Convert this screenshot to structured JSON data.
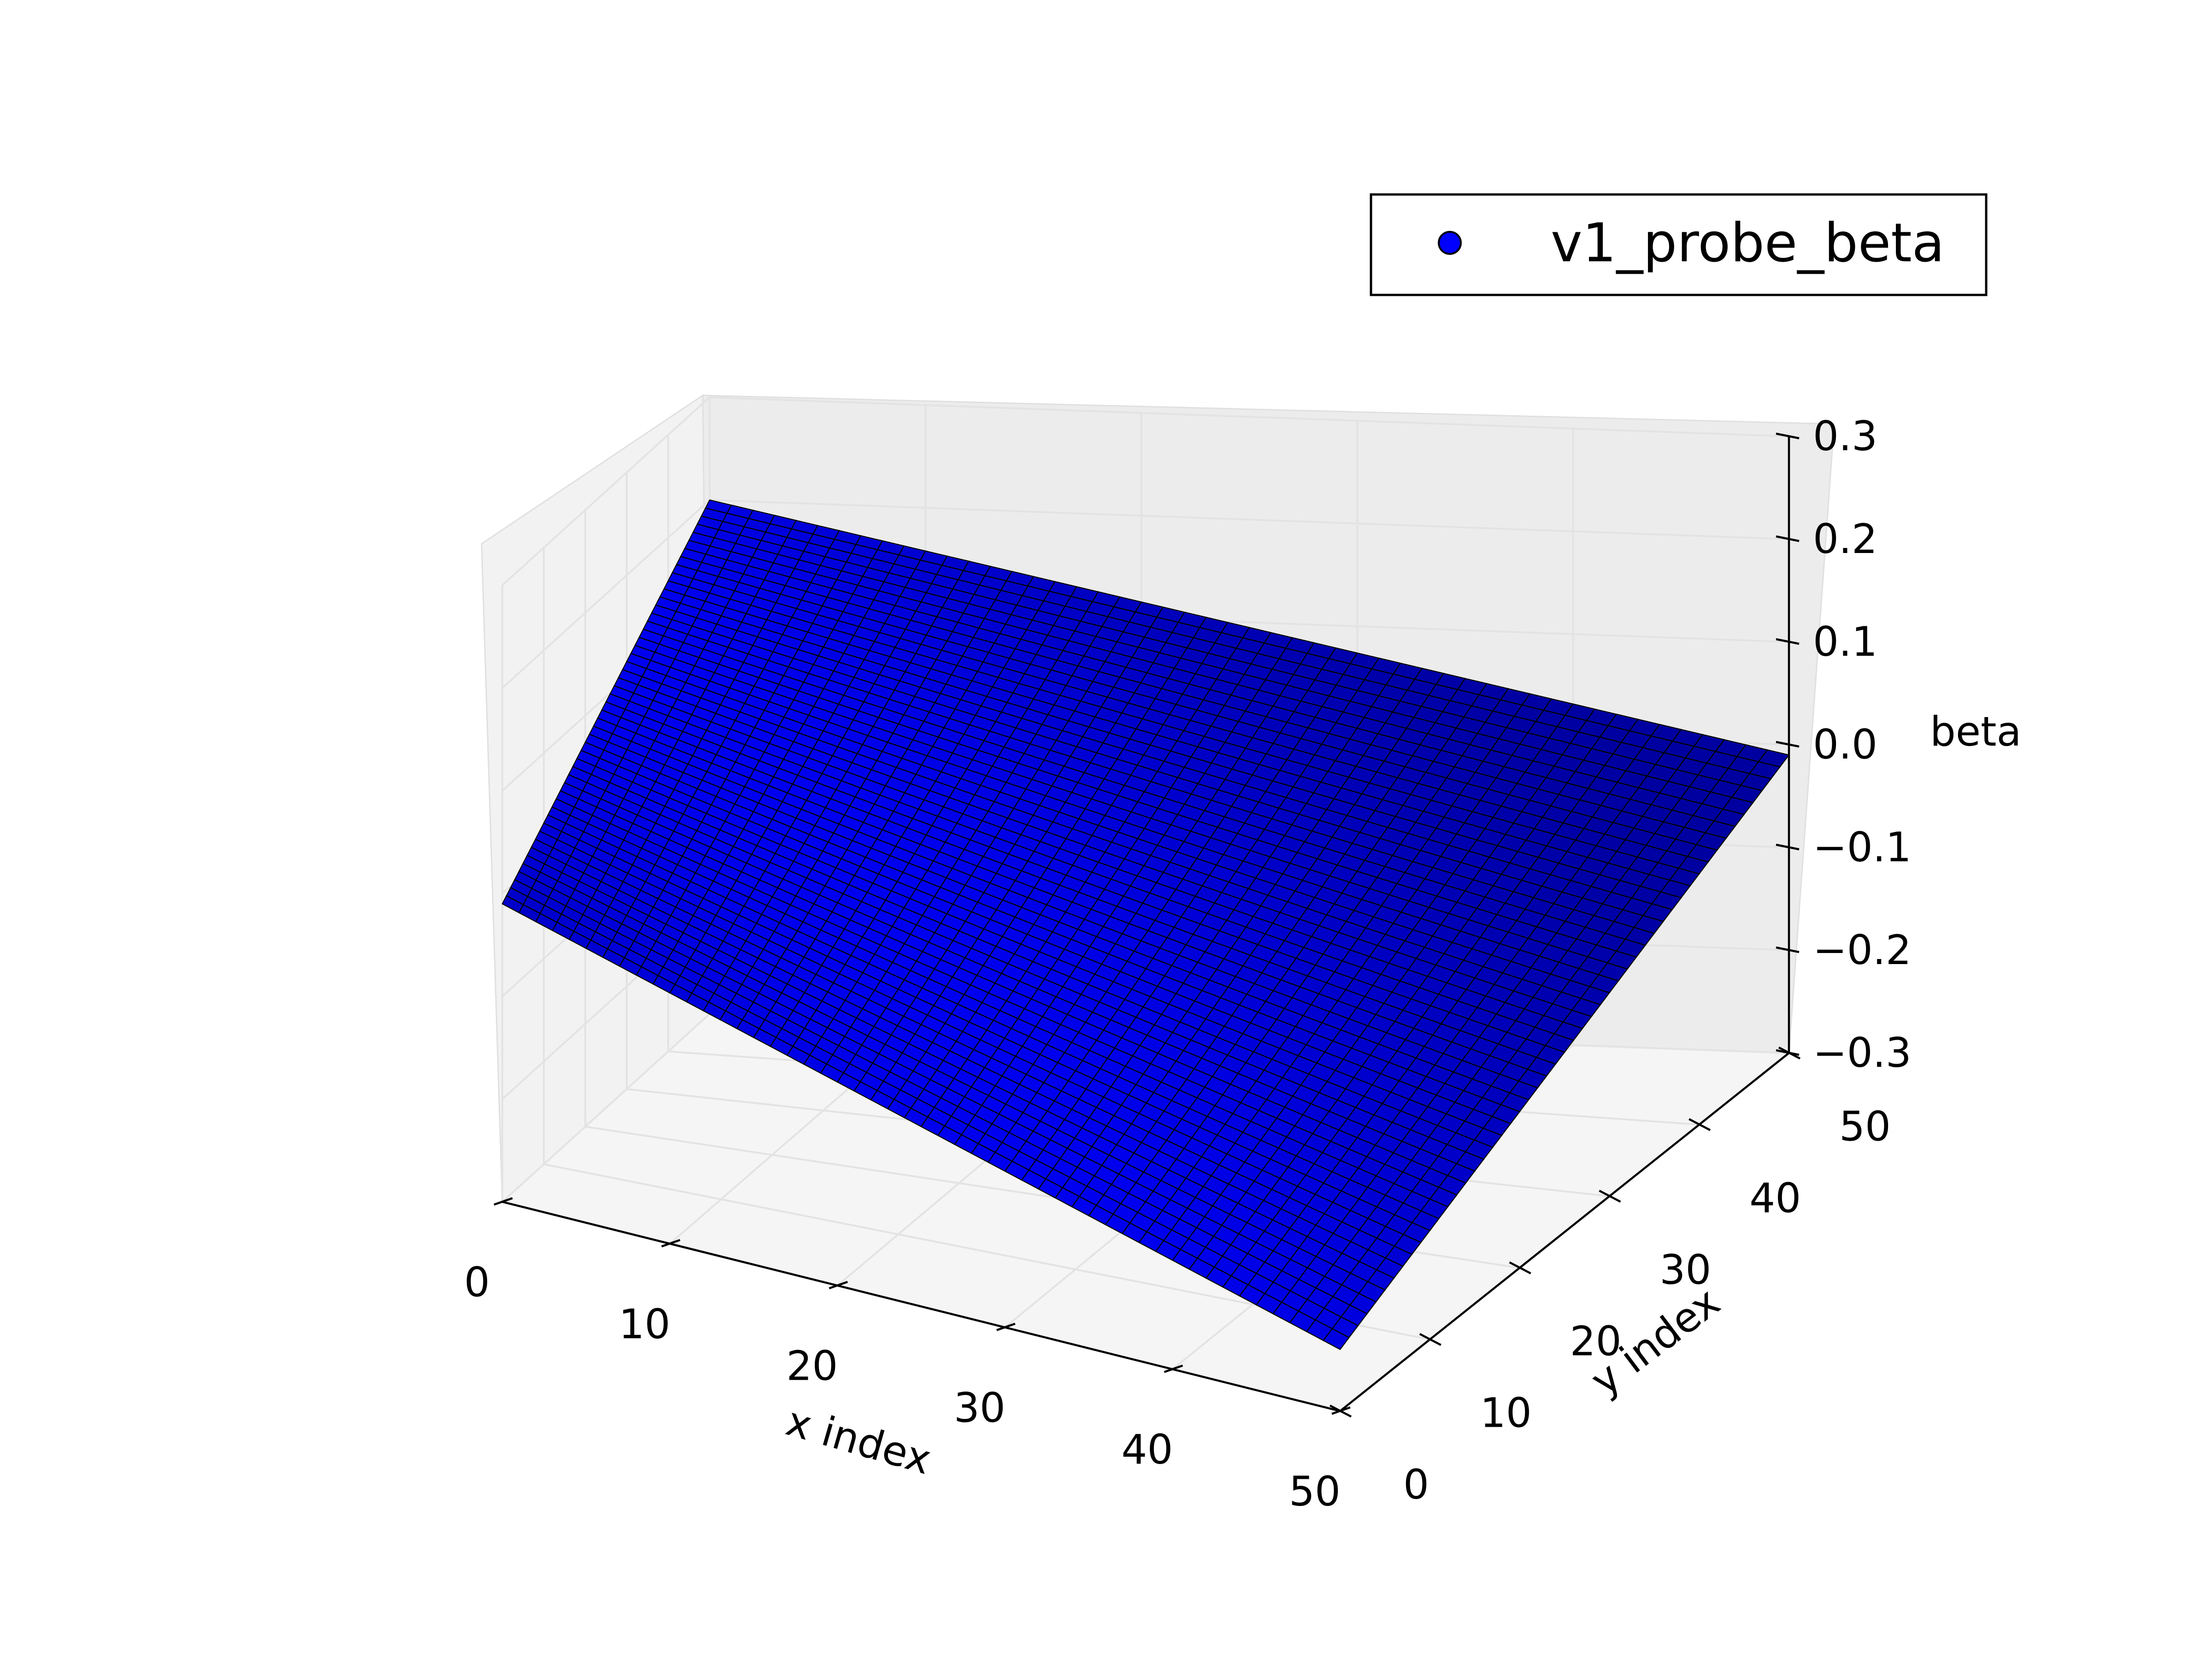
{
  "chart_data": {
    "type": "surface",
    "title": "",
    "xlabel": "x index",
    "ylabel": "y index",
    "zlabel": "beta",
    "xlim": [
      0,
      50
    ],
    "ylim": [
      0,
      50
    ],
    "zlim": [
      -0.3,
      0.3
    ],
    "x_ticks": [
      "0",
      "10",
      "20",
      "30",
      "40",
      "50"
    ],
    "y_ticks": [
      "0",
      "10",
      "20",
      "30",
      "40",
      "50"
    ],
    "z_ticks": [
      "−0.3",
      "−0.2",
      "−0.1",
      "0.0",
      "0.1",
      "0.2",
      "0.3"
    ],
    "grid": true,
    "legend_position": "top-right",
    "series": [
      {
        "name": "v1_probe_beta",
        "color": "#0000ff",
        "edge_color": "#000000",
        "grid_size": [
          50,
          50
        ],
        "corner_values": {
          "x0_y0": -0.01,
          "x0_y50": 0.2,
          "x50_y0": -0.24,
          "x50_y50": -0.01,
          "x25_y25": -0.02
        }
      }
    ]
  }
}
